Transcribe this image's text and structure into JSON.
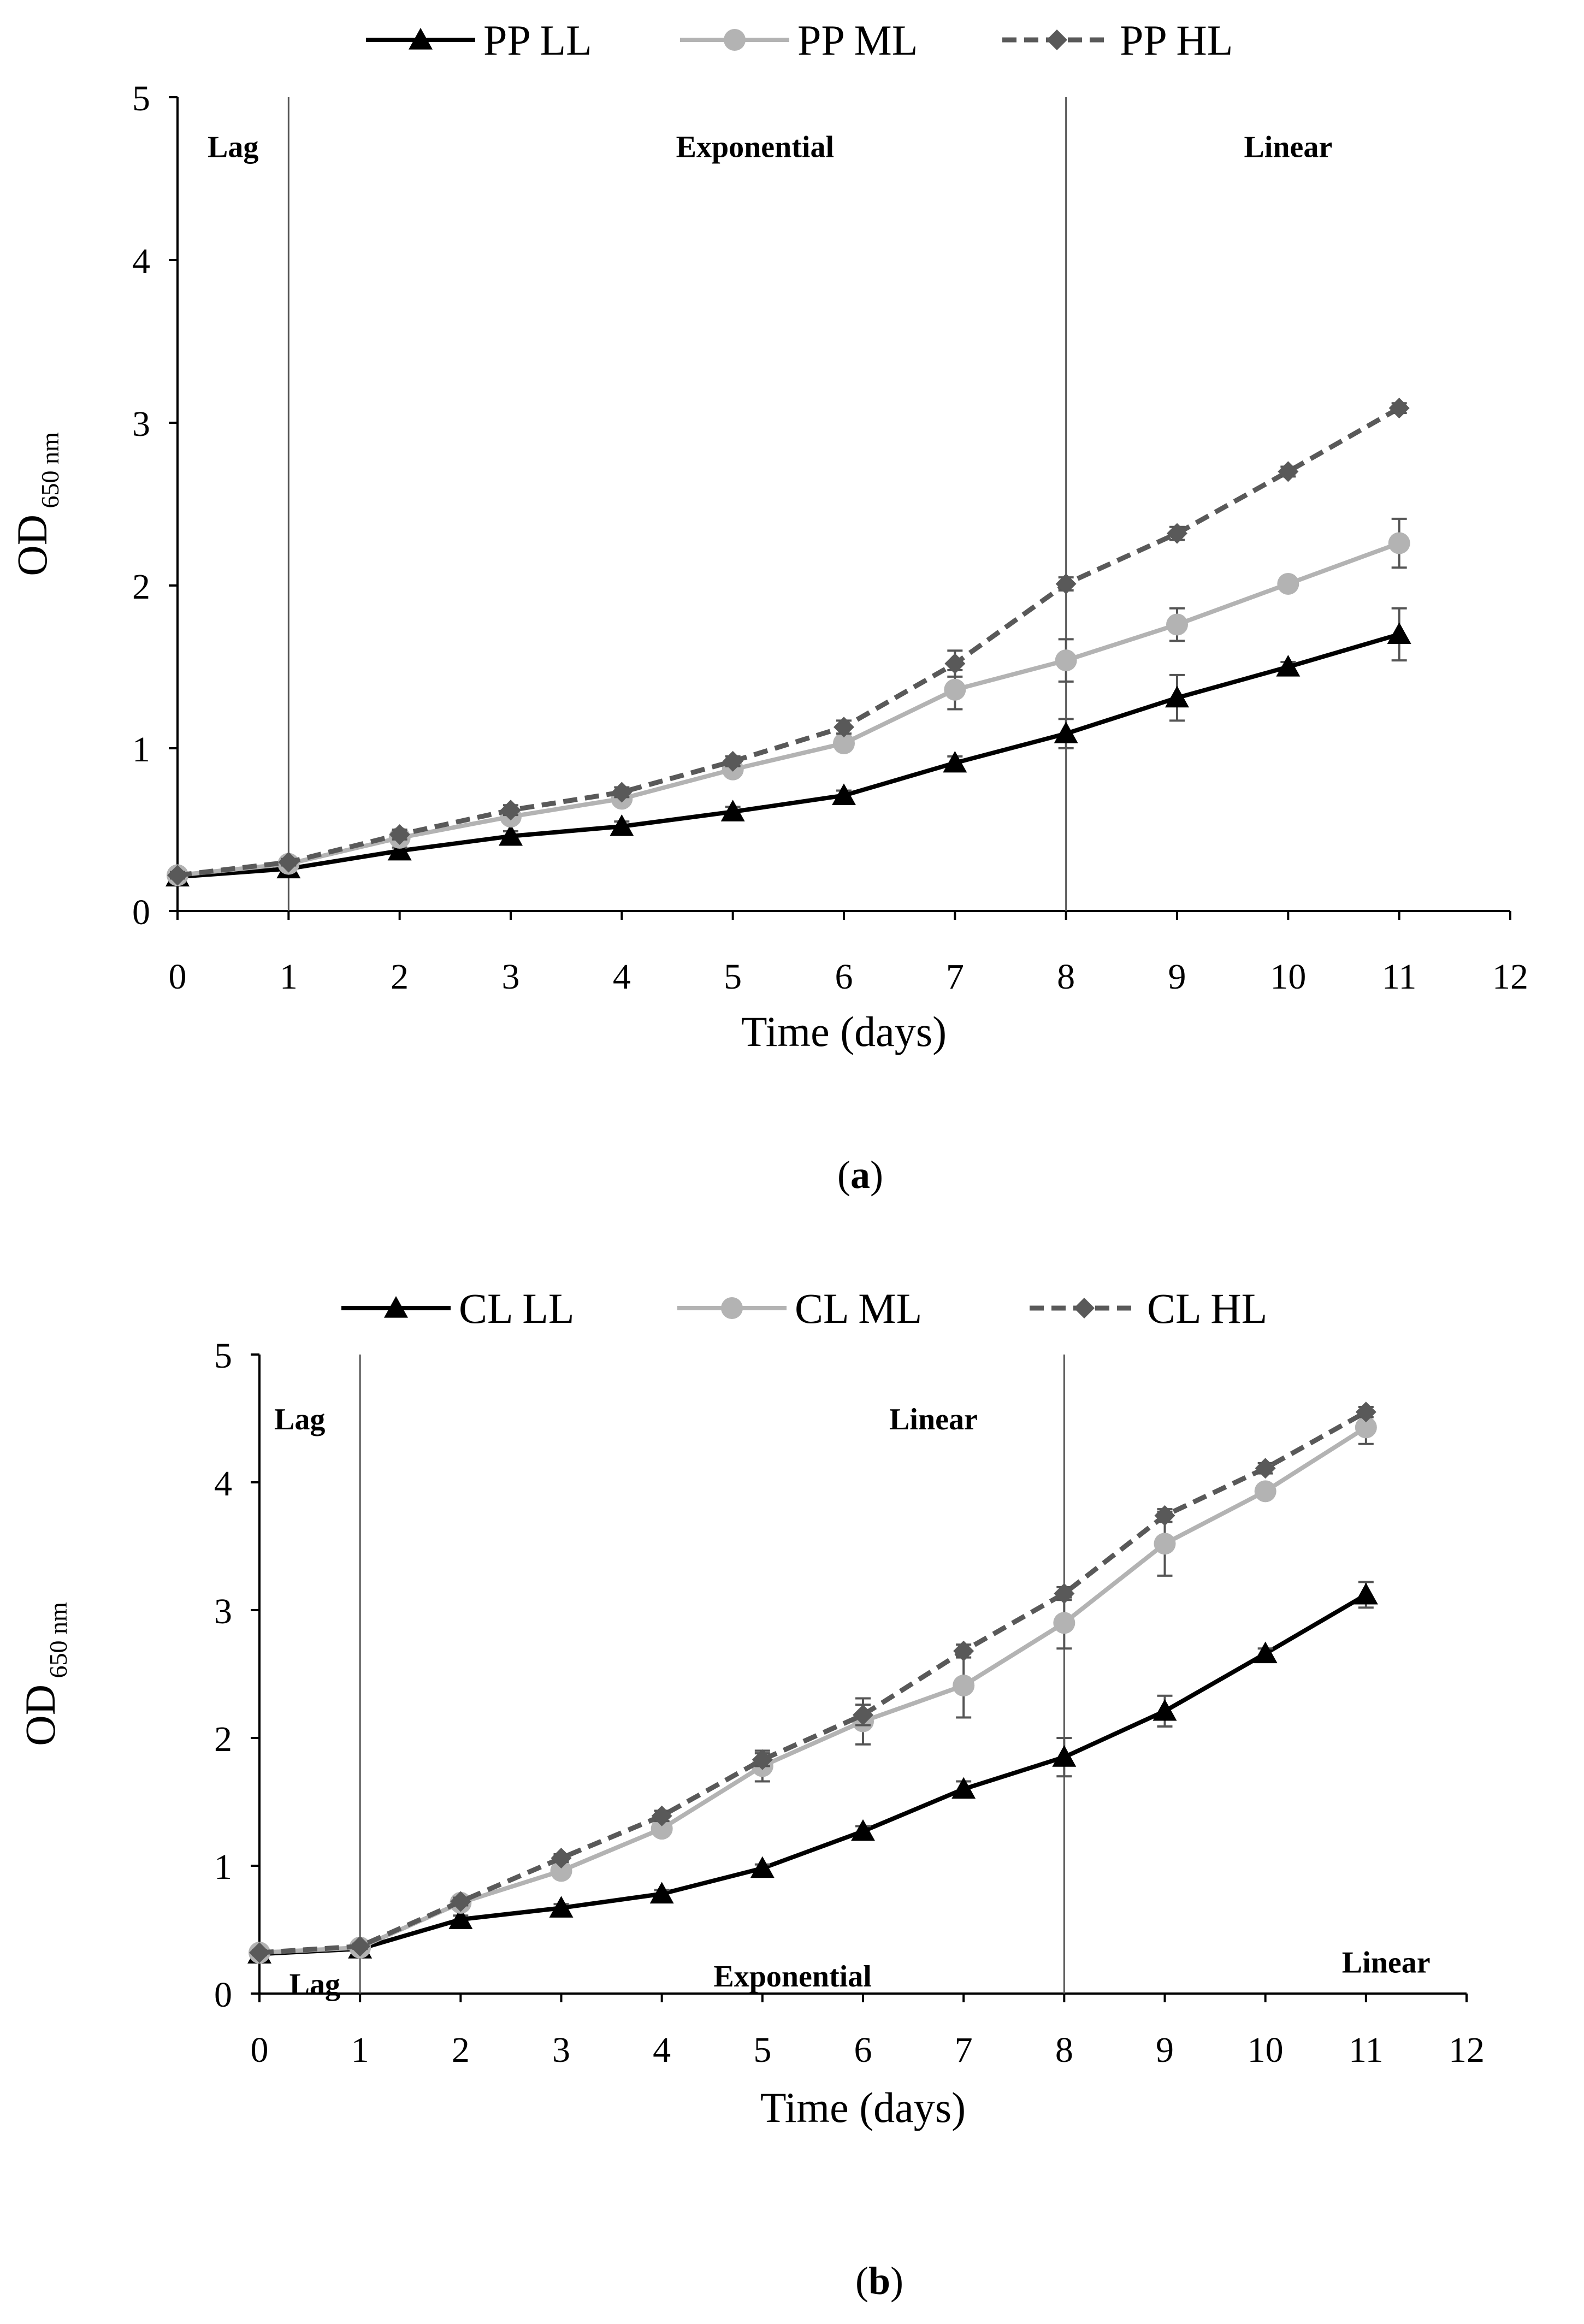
{
  "chart_data": [
    {
      "type": "line",
      "panel_label": "(a)",
      "panel_letter": "a",
      "xlabel": "Time (days)",
      "ylabel": "OD",
      "ylabel_sub": "650 nm",
      "xlim": [
        0,
        12
      ],
      "ylim": [
        0,
        5
      ],
      "x_ticks": [
        0,
        1,
        2,
        3,
        4,
        5,
        6,
        7,
        8,
        9,
        10,
        11,
        12
      ],
      "y_ticks": [
        0,
        1,
        2,
        3,
        4,
        5
      ],
      "x": [
        0,
        1,
        2,
        3,
        4,
        5,
        6,
        7,
        8,
        9,
        10,
        11
      ],
      "phase_lines": [
        1,
        8
      ],
      "phase_labels": [
        {
          "text": "Lag",
          "x": 0.5,
          "y": 4.7
        },
        {
          "text": "Exponential",
          "x": 5.2,
          "y": 4.7
        },
        {
          "text": "Linear",
          "x": 10,
          "y": 4.7
        }
      ],
      "series": [
        {
          "name": "PP LL",
          "marker": "triangle",
          "color": "#000000",
          "dashed": false,
          "values": [
            0.21,
            0.26,
            0.37,
            0.46,
            0.52,
            0.61,
            0.71,
            0.91,
            1.09,
            1.31,
            1.5,
            1.7
          ],
          "errors": [
            0.02,
            0.02,
            0.02,
            0.03,
            0.03,
            0.03,
            0.03,
            0.04,
            0.09,
            0.14,
            0.03,
            0.16
          ]
        },
        {
          "name": "PP ML",
          "marker": "circle",
          "color": "#b3b3b3",
          "dashed": false,
          "values": [
            0.22,
            0.29,
            0.45,
            0.58,
            0.69,
            0.87,
            1.03,
            1.36,
            1.54,
            1.76,
            2.01,
            2.26
          ],
          "errors": [
            0.02,
            0.02,
            0.03,
            0.03,
            0.03,
            0.04,
            0.04,
            0.12,
            0.13,
            0.1,
            0.03,
            0.15
          ]
        },
        {
          "name": "PP HL",
          "marker": "diamond",
          "color": "#595959",
          "dashed": true,
          "values": [
            0.22,
            0.3,
            0.47,
            0.62,
            0.73,
            0.92,
            1.13,
            1.52,
            2.01,
            2.32,
            2.7,
            3.09
          ],
          "errors": [
            0.02,
            0.02,
            0.03,
            0.03,
            0.03,
            0.03,
            0.04,
            0.08,
            0.04,
            0.04,
            0.03,
            0.03
          ]
        }
      ]
    },
    {
      "type": "line",
      "panel_label": "(b)",
      "panel_letter": "b",
      "xlabel": "Time (days)",
      "ylabel": "OD",
      "ylabel_sub": "650 nm",
      "xlim": [
        0,
        12
      ],
      "ylim": [
        0,
        5
      ],
      "x_ticks": [
        0,
        1,
        2,
        3,
        4,
        5,
        6,
        7,
        8,
        9,
        10,
        11,
        12
      ],
      "y_ticks": [
        0,
        1,
        2,
        3,
        4,
        5
      ],
      "x": [
        0,
        1,
        2,
        3,
        4,
        5,
        6,
        7,
        8,
        9,
        10,
        11
      ],
      "phase_lines": [
        1,
        8
      ],
      "phase_labels": [
        {
          "text": "Lag",
          "x": 0.4,
          "y": 4.5
        },
        {
          "text": "Linear",
          "x": 6.7,
          "y": 4.5
        },
        {
          "text": "Lag",
          "x": 0.55,
          "y": 0.08
        },
        {
          "text": "Exponential",
          "x": 5.3,
          "y": 0.14
        },
        {
          "text": "Linear",
          "x": 11.2,
          "y": 0.25
        }
      ],
      "series": [
        {
          "name": "CL LL",
          "marker": "triangle",
          "color": "#000000",
          "dashed": false,
          "values": [
            0.31,
            0.35,
            0.58,
            0.67,
            0.78,
            0.98,
            1.27,
            1.6,
            1.85,
            2.21,
            2.66,
            3.12
          ],
          "errors": [
            0.02,
            0.02,
            0.03,
            0.03,
            0.03,
            0.03,
            0.04,
            0.06,
            0.15,
            0.12,
            0.04,
            0.1
          ]
        },
        {
          "name": "CL ML",
          "marker": "circle",
          "color": "#b3b3b3",
          "dashed": false,
          "values": [
            0.32,
            0.36,
            0.71,
            0.96,
            1.29,
            1.78,
            2.13,
            2.41,
            2.9,
            3.52,
            3.93,
            4.43
          ],
          "errors": [
            0.02,
            0.02,
            0.03,
            0.04,
            0.04,
            0.12,
            0.18,
            0.25,
            0.2,
            0.25,
            0.04,
            0.13
          ]
        },
        {
          "name": "CL HL",
          "marker": "diamond",
          "color": "#595959",
          "dashed": true,
          "values": [
            0.32,
            0.37,
            0.72,
            1.06,
            1.39,
            1.83,
            2.18,
            2.68,
            3.13,
            3.74,
            4.11,
            4.55
          ],
          "errors": [
            0.02,
            0.02,
            0.03,
            0.03,
            0.04,
            0.05,
            0.08,
            0.05,
            0.05,
            0.05,
            0.04,
            0.04
          ]
        }
      ]
    }
  ]
}
